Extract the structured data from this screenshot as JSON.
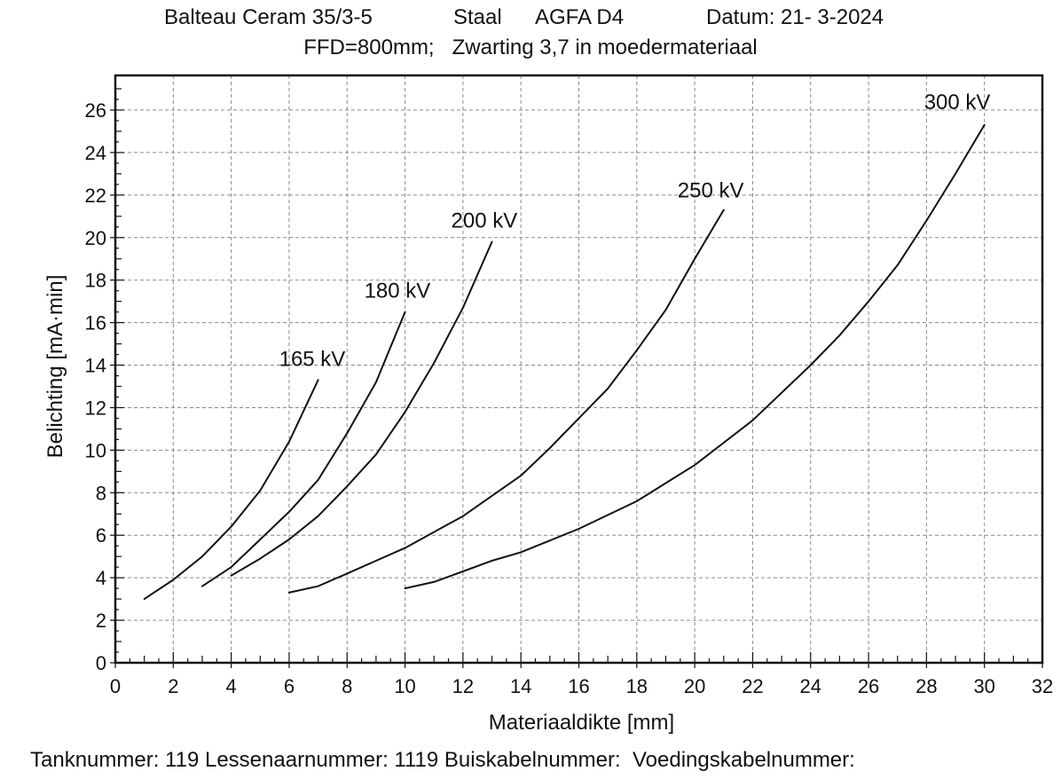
{
  "header": {
    "device": "Balteau Ceram 35/3-5",
    "material": "Staal",
    "film": "AGFA D4",
    "date": "Datum: 21- 3-2024",
    "conditions": "FFD=800mm;   Zwarting 3,7 in moedermateriaal"
  },
  "footer": {
    "text": "Tanknummer: 119 Lessenaarnummer: 1119 Buiskabelnummer:  Voedingskabelnummer:"
  },
  "chart_data": {
    "type": "line",
    "xlabel": "Materiaaldikte [mm]",
    "ylabel": "Belichting [mA·min]",
    "xlim": [
      0,
      32
    ],
    "ylim": [
      0,
      27
    ],
    "xticks": [
      0,
      2,
      4,
      6,
      8,
      10,
      12,
      14,
      16,
      18,
      20,
      22,
      24,
      26,
      28,
      30,
      32
    ],
    "yticks": [
      0,
      2,
      4,
      6,
      8,
      10,
      12,
      14,
      16,
      18,
      20,
      22,
      24,
      26
    ],
    "grid": true,
    "series": [
      {
        "name": "165 kV",
        "x": [
          1,
          2,
          3,
          4,
          5,
          6,
          7
        ],
        "y": [
          3.0,
          3.9,
          5.0,
          6.4,
          8.1,
          10.4,
          13.3
        ]
      },
      {
        "name": "180 kV",
        "x": [
          3,
          4,
          5,
          6,
          7,
          8,
          9,
          10
        ],
        "y": [
          3.6,
          4.5,
          5.8,
          7.1,
          8.6,
          10.8,
          13.2,
          16.5
        ]
      },
      {
        "name": "200 kV",
        "x": [
          4,
          5,
          6,
          7,
          8,
          9,
          10,
          11,
          12,
          13
        ],
        "y": [
          4.1,
          4.9,
          5.8,
          6.9,
          8.3,
          9.8,
          11.8,
          14.1,
          16.7,
          19.8
        ]
      },
      {
        "name": "250 kV",
        "x": [
          6,
          7,
          8,
          9,
          10,
          12,
          14,
          15,
          16,
          17,
          18,
          19,
          20,
          21
        ],
        "y": [
          3.3,
          3.6,
          4.2,
          4.8,
          5.4,
          6.9,
          8.8,
          10.1,
          11.5,
          12.9,
          14.7,
          16.6,
          19.0,
          21.3
        ]
      },
      {
        "name": "300 kV",
        "x": [
          10,
          11,
          12,
          13,
          14,
          16,
          18,
          20,
          22,
          24,
          25,
          26,
          27,
          28,
          29,
          30
        ],
        "y": [
          3.5,
          3.8,
          4.3,
          4.8,
          5.2,
          6.3,
          7.6,
          9.3,
          11.4,
          14.0,
          15.4,
          17.0,
          18.7,
          20.8,
          23.0,
          25.3
        ]
      }
    ]
  }
}
